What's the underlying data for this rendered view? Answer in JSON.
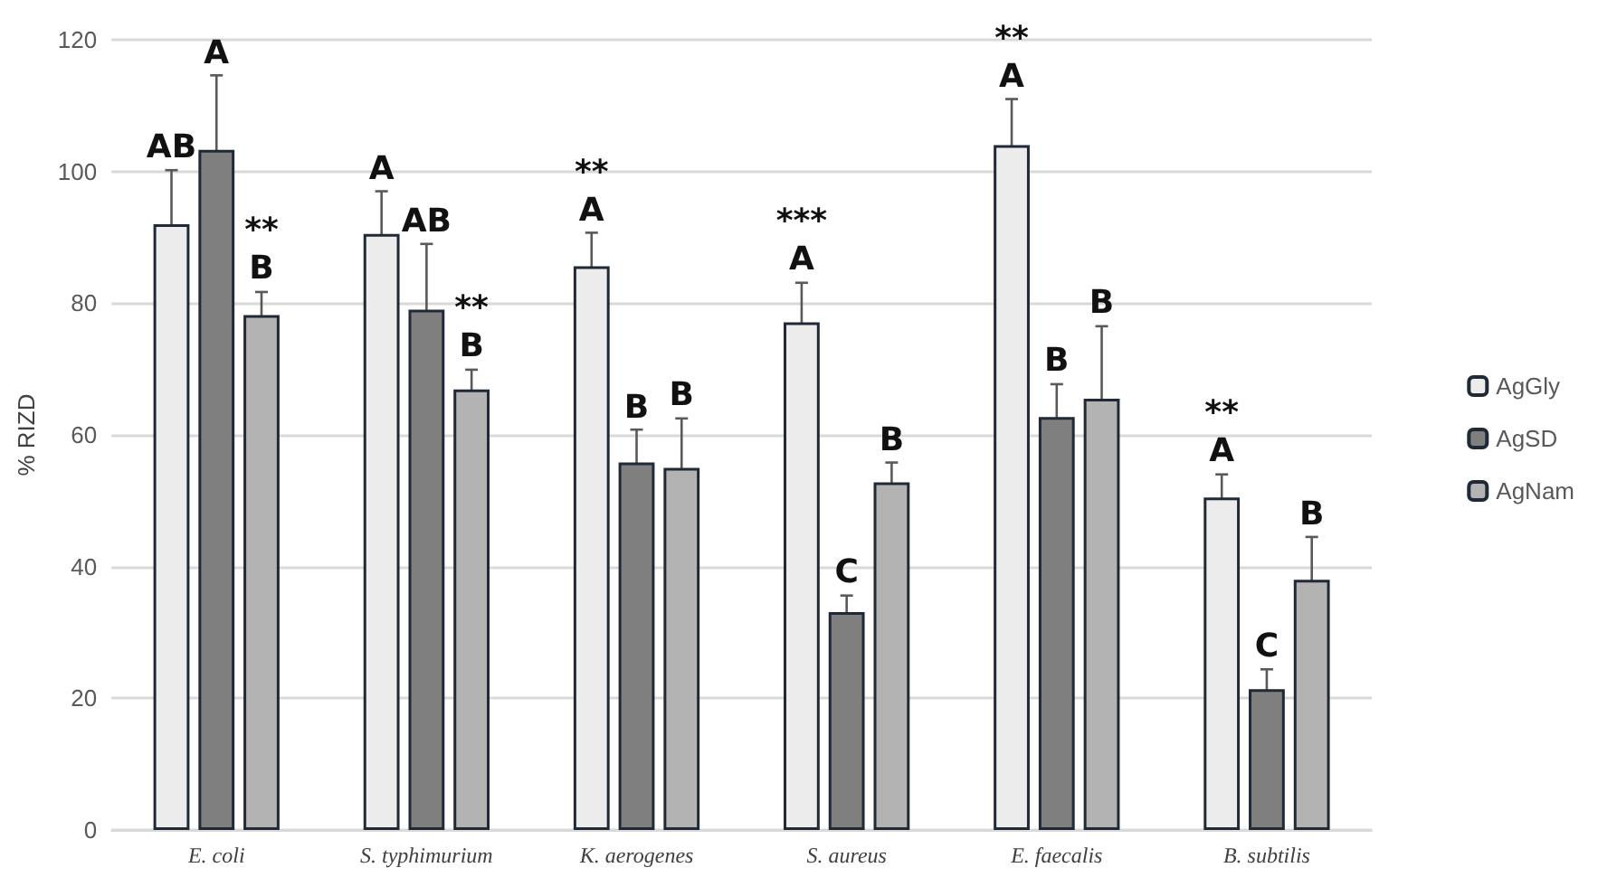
{
  "chart_data": {
    "type": "bar",
    "ylabel": "% RIZD",
    "categories": [
      "E. coli",
      "S. typhimurium",
      "K. aerogenes",
      "S. aureus",
      "E. faecalis",
      "B. subtilis"
    ],
    "series": [
      {
        "name": "AgGly",
        "color": "#ececec",
        "values": [
          92,
          90.5,
          85.6,
          77.1,
          104,
          50.5
        ],
        "errors": [
          8.2,
          6.5,
          5.1,
          6,
          7,
          3.5
        ],
        "value_labels": [
          "AB",
          "A",
          "**\nA",
          "***\nA",
          "**\nA",
          "**\nA"
        ]
      },
      {
        "name": "AgSD",
        "color": "#7f7f7f",
        "values": [
          103.3,
          79,
          55.8,
          33.1,
          62.7,
          21.4
        ],
        "errors": [
          11.3,
          10,
          5,
          2.5,
          5,
          3
        ],
        "value_labels": [
          "A",
          "AB",
          "B",
          "C",
          "B",
          "C"
        ]
      },
      {
        "name": "AgNam",
        "color": "#b3b3b3",
        "values": [
          78.2,
          66.9,
          55,
          52.8,
          65.5,
          38
        ],
        "errors": [
          3.5,
          3,
          7.5,
          3,
          11,
          6.5
        ],
        "value_labels": [
          "**\nB",
          "**\nB",
          "B",
          "B",
          "B",
          "B"
        ]
      }
    ],
    "ylim": [
      0,
      120
    ],
    "yticks": [
      0,
      20,
      40,
      60,
      80,
      100,
      120
    ],
    "grid": "y",
    "legend": "right"
  }
}
